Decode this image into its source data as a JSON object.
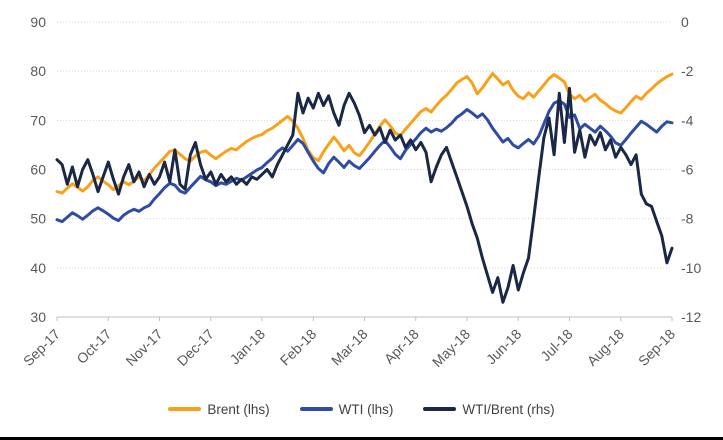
{
  "page": {
    "background": "#ffffff",
    "bottom_bar_color": "#000000"
  },
  "chart_data": {
    "type": "line",
    "grid": "horizontal-dotted",
    "legend_position": "bottom",
    "colors": {
      "axis_text": "#595959",
      "legend_text": "#3f3f3f",
      "gridline": "#d6d6d6",
      "axis_line": "#bfbfbf"
    },
    "x_tick_labels": [
      "Sep-17",
      "Oct-17",
      "Nov-17",
      "Dec-17",
      "Jan-18",
      "Feb-18",
      "Mar-18",
      "Apr-18",
      "May-18",
      "Jun-18",
      "Jul-18",
      "Aug-18",
      "Sep-18"
    ],
    "left_axis": {
      "range": [
        30,
        90
      ],
      "ticks": [
        90,
        80,
        70,
        60,
        50,
        40,
        30
      ]
    },
    "right_axis": {
      "range": [
        -12,
        0
      ],
      "ticks": [
        0,
        -2,
        -4,
        -6,
        -8,
        -10,
        -12
      ]
    },
    "series": [
      {
        "name": "Brent (lhs)",
        "axis": "left",
        "color": "#F9A11B",
        "values": [
          55.5,
          55.2,
          56.2,
          57.1,
          56.4,
          55.6,
          56.5,
          57.8,
          58.5,
          57.6,
          56.9,
          55.9,
          56.7,
          57.5,
          56.9,
          57.6,
          58.5,
          57.7,
          58.9,
          60.3,
          61.4,
          62.5,
          63.7,
          63.9,
          63.1,
          62.2,
          61.7,
          62.7,
          63.5,
          63.8,
          62.9,
          62.2,
          63.0,
          63.7,
          64.3,
          64.0,
          64.9,
          65.7,
          66.3,
          66.8,
          67.1,
          67.9,
          68.4,
          69.2,
          70.0,
          70.8,
          69.8,
          68.4,
          66.3,
          63.9,
          62.4,
          61.8,
          63.6,
          65.1,
          66.6,
          65.3,
          63.8,
          64.9,
          63.4,
          62.8,
          64.1,
          65.6,
          67.2,
          68.8,
          70.1,
          68.9,
          67.4,
          66.9,
          68.2,
          69.4,
          70.6,
          71.8,
          72.4,
          71.7,
          73.0,
          74.2,
          75.1,
          76.3,
          77.6,
          78.3,
          78.9,
          77.6,
          75.4,
          76.6,
          78.1,
          79.5,
          78.4,
          77.2,
          77.9,
          76.1,
          74.9,
          74.4,
          75.6,
          74.7,
          76.0,
          77.2,
          78.5,
          79.3,
          78.6,
          77.8,
          75.3,
          74.4,
          75.1,
          73.9,
          74.6,
          75.3,
          74.1,
          73.4,
          72.5,
          71.9,
          71.5,
          72.6,
          73.8,
          74.9,
          74.3,
          75.5,
          76.4,
          77.4,
          78.2,
          78.9,
          79.4
        ]
      },
      {
        "name": "WTI (lhs)",
        "axis": "left",
        "color": "#2E4CA4",
        "values": [
          49.8,
          49.4,
          50.3,
          51.2,
          50.6,
          49.9,
          50.7,
          51.6,
          52.2,
          51.6,
          50.9,
          50.1,
          49.6,
          50.7,
          51.4,
          51.9,
          51.5,
          52.2,
          52.7,
          54.0,
          55.1,
          56.3,
          57.2,
          56.8,
          55.6,
          55.2,
          56.4,
          57.5,
          58.6,
          57.9,
          57.5,
          56.7,
          57.3,
          57.0,
          57.6,
          58.2,
          57.8,
          58.5,
          59.2,
          59.9,
          60.4,
          61.4,
          62.3,
          63.6,
          64.4,
          63.7,
          64.9,
          66.1,
          65.3,
          63.5,
          61.7,
          60.2,
          59.3,
          61.2,
          62.5,
          61.5,
          60.4,
          61.7,
          60.8,
          60.2,
          61.3,
          62.4,
          63.7,
          64.9,
          65.9,
          64.6,
          63.1,
          62.2,
          63.9,
          65.1,
          66.2,
          67.5,
          68.4,
          67.6,
          68.2,
          67.8,
          68.5,
          69.4,
          70.6,
          71.3,
          72.2,
          71.5,
          70.6,
          71.3,
          70.1,
          68.4,
          67.0,
          65.6,
          66.3,
          65.0,
          64.4,
          65.3,
          66.1,
          65.2,
          66.8,
          69.3,
          71.8,
          73.5,
          74.0,
          73.3,
          70.6,
          71.1,
          68.3,
          69.2,
          68.4,
          67.6,
          68.8,
          67.9,
          66.8,
          65.4,
          64.9,
          66.1,
          67.4,
          68.6,
          69.8,
          69.2,
          68.4,
          67.6,
          68.8,
          69.7,
          69.5
        ]
      },
      {
        "name": "WTI/Brent (rhs)",
        "axis": "right",
        "color": "#1A2845",
        "values": [
          -5.6,
          -5.8,
          -6.6,
          -5.9,
          -6.7,
          -6.0,
          -5.6,
          -6.2,
          -6.9,
          -6.3,
          -5.7,
          -6.4,
          -7.0,
          -6.3,
          -5.8,
          -6.5,
          -6.1,
          -6.7,
          -6.2,
          -6.6,
          -6.3,
          -5.7,
          -6.5,
          -5.2,
          -6.6,
          -6.8,
          -5.4,
          -4.9,
          -5.8,
          -6.4,
          -6.1,
          -6.6,
          -6.2,
          -6.5,
          -6.3,
          -6.6,
          -6.4,
          -6.6,
          -6.3,
          -6.4,
          -6.2,
          -6.0,
          -6.3,
          -5.8,
          -5.4,
          -5.0,
          -4.6,
          -2.9,
          -3.7,
          -3.1,
          -3.5,
          -2.9,
          -3.4,
          -3.0,
          -3.7,
          -4.2,
          -3.4,
          -2.9,
          -3.3,
          -3.8,
          -4.5,
          -4.2,
          -4.6,
          -4.3,
          -4.9,
          -4.4,
          -4.8,
          -4.6,
          -5.1,
          -4.8,
          -5.2,
          -4.9,
          -5.3,
          -6.5,
          -5.9,
          -5.4,
          -5.1,
          -5.7,
          -6.3,
          -6.9,
          -7.5,
          -8.2,
          -8.8,
          -9.6,
          -10.3,
          -11.0,
          -10.4,
          -11.4,
          -10.8,
          -9.9,
          -10.9,
          -10.2,
          -9.6,
          -8.0,
          -6.3,
          -4.7,
          -3.9,
          -5.4,
          -2.9,
          -4.9,
          -2.7,
          -5.3,
          -4.4,
          -5.5,
          -4.6,
          -5.0,
          -4.5,
          -5.2,
          -4.8,
          -5.5,
          -5.1,
          -5.4,
          -5.8,
          -5.4,
          -7.0,
          -7.4,
          -7.5,
          -8.1,
          -8.7,
          -9.8,
          -9.2
        ]
      }
    ]
  }
}
